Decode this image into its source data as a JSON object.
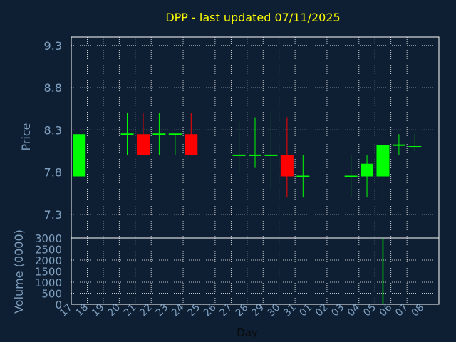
{
  "chart_data": {
    "type": "candlestick",
    "title": "DPP - last updated 07/11/2025",
    "xlabel": "Day",
    "colors": {
      "background": "#0f1f33",
      "title": "#ffff00",
      "axis_text": "#7f9fbf",
      "grid": "#ffffff",
      "up": "#00ff00",
      "down": "#ff0000"
    },
    "price": {
      "ylabel": "Price",
      "ylim": [
        7.02,
        9.4
      ],
      "ticks": [
        "9.3",
        "8.8",
        "8.3",
        "7.8",
        "7.3"
      ],
      "tick_values": [
        9.3,
        8.8,
        8.3,
        7.8,
        7.3
      ]
    },
    "volume": {
      "ylabel": "Volume (0000)",
      "ylim": [
        0,
        3000
      ],
      "ticks": [
        "3000",
        "2500",
        "2000",
        "1500",
        "1000",
        "500",
        "0"
      ],
      "tick_values": [
        3000,
        2500,
        2000,
        1500,
        1000,
        500,
        0
      ]
    },
    "x_ticks": [
      "17",
      "18",
      "19",
      "20",
      "21",
      "22",
      "23",
      "24",
      "25",
      "26",
      "27",
      "28",
      "29",
      "30",
      "31",
      "01",
      "02",
      "03",
      "04",
      "05",
      "06",
      "07",
      "08"
    ],
    "candles": [
      {
        "x": "17",
        "open": 7.75,
        "close": 8.25,
        "high": 8.25,
        "low": 7.75
      },
      {
        "x": "20",
        "open": 8.25,
        "close": 8.25,
        "high": 8.5,
        "low": 8.0
      },
      {
        "x": "21",
        "open": 8.25,
        "close": 8.0,
        "high": 8.5,
        "low": 8.0
      },
      {
        "x": "22",
        "open": 8.25,
        "close": 8.25,
        "high": 8.5,
        "low": 8.0
      },
      {
        "x": "23",
        "open": 8.25,
        "close": 8.25,
        "high": 8.25,
        "low": 8.0
      },
      {
        "x": "24",
        "open": 8.25,
        "close": 8.0,
        "high": 8.5,
        "low": 8.0
      },
      {
        "x": "27",
        "open": 8.0,
        "close": 8.0,
        "high": 8.4,
        "low": 7.8
      },
      {
        "x": "28",
        "open": 8.0,
        "close": 8.0,
        "high": 8.45,
        "low": 7.85
      },
      {
        "x": "29",
        "open": 8.0,
        "close": 8.0,
        "high": 8.5,
        "low": 7.6
      },
      {
        "x": "30",
        "open": 8.0,
        "close": 7.75,
        "high": 8.45,
        "low": 7.5
      },
      {
        "x": "31",
        "open": 7.75,
        "close": 7.75,
        "high": 8.0,
        "low": 7.5
      },
      {
        "x": "03",
        "open": 7.75,
        "close": 7.75,
        "high": 8.0,
        "low": 7.5
      },
      {
        "x": "04",
        "open": 7.75,
        "close": 7.9,
        "high": 8.0,
        "low": 7.5
      },
      {
        "x": "05",
        "open": 7.75,
        "close": 8.12,
        "high": 8.2,
        "low": 7.5
      },
      {
        "x": "06",
        "open": 8.12,
        "close": 8.12,
        "high": 8.25,
        "low": 8.0
      },
      {
        "x": "07",
        "open": 8.1,
        "close": 8.1,
        "high": 8.25,
        "low": 8.05
      }
    ],
    "volume_bars": [
      {
        "x": "05",
        "value": 3000
      }
    ]
  }
}
